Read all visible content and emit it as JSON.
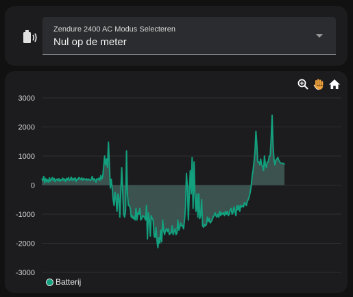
{
  "select": {
    "icon": "battery-charging-icon",
    "label": "Zendure 2400 AC Modus Selecteren",
    "value": "Nul op de meter"
  },
  "toolbar": {
    "icons": [
      "zoom-in-icon",
      "pan-hand-icon",
      "home-reset-icon"
    ]
  },
  "colors": {
    "series": "#13a07e",
    "fill": "#3f5954",
    "card": "#1c1c1e",
    "background": "#111111"
  },
  "chart_data": {
    "type": "area",
    "title": "",
    "xlabel": "",
    "ylabel": "",
    "ylim": [
      -3000,
      3000
    ],
    "yticks": [
      "3000",
      "2000",
      "1000",
      "0",
      "-1000",
      "-2000",
      "-3000"
    ],
    "grid": true,
    "legend_position": "bottom-left",
    "series": [
      {
        "name": "Batterij",
        "color": "#13a07e",
        "values": [
          220,
          160,
          300,
          80,
          230,
          120,
          180,
          100,
          250,
          130,
          200,
          260,
          160,
          230,
          120,
          180,
          210,
          150,
          220,
          130,
          190,
          160,
          240,
          170,
          210,
          120,
          230,
          180,
          260,
          150,
          200,
          270,
          160,
          230,
          180,
          250,
          120,
          210,
          190,
          260,
          230,
          190,
          250,
          170,
          230,
          200,
          180,
          220,
          170,
          210,
          180,
          160,
          200,
          300,
          160,
          220,
          180,
          100,
          220,
          190,
          240,
          160,
          330,
          210,
          280,
          620,
          1000,
          700,
          900,
          610,
          1480,
          680,
          -100,
          200,
          -100,
          -500,
          -700,
          -250,
          -500,
          -900,
          -300,
          -450,
          -1100,
          -250,
          600,
          -200,
          -1000,
          -1100,
          -900,
          1180,
          -300,
          -700,
          -700,
          -800,
          -1100,
          -1050,
          -1150,
          -1100,
          -1200,
          -800,
          -1200,
          -950,
          -1000,
          -800,
          -1200,
          -1150,
          -1050,
          -1080,
          -1100,
          -1200,
          -700,
          -1850,
          -950,
          -1200,
          -1750,
          -1050,
          -1150,
          -1200,
          -1750,
          -1800,
          -1450,
          -1900,
          -2150,
          -1800,
          -2000,
          -1550,
          -1950,
          -1200,
          -1550,
          -1700,
          -1550,
          -1500,
          -1600,
          -1500,
          -1700,
          -1650,
          -1650,
          -1400,
          -1700,
          -1600,
          -1500,
          -1700,
          -1650,
          -1200,
          -1550,
          -1450,
          -1300,
          -1400,
          -1400,
          -1500,
          -1200,
          -750,
          400,
          -100,
          -1200,
          -300,
          500,
          -300,
          950,
          -800,
          800,
          -400,
          -900,
          -300,
          -1100,
          -300,
          -1150,
          -1050,
          -500,
          -1400,
          -1450,
          -1350,
          -1400,
          -1350,
          -1100,
          -1250,
          -1150,
          -1300,
          -1250,
          -1200,
          -1100,
          -1050,
          -950,
          -1050,
          -1100,
          -1000,
          -1100,
          -900,
          -1050,
          -950,
          -1000,
          -950,
          -1050,
          -900,
          -1000,
          -900,
          -1050,
          -1000,
          -850,
          -800,
          -1000,
          -950,
          -750,
          -900,
          -1050,
          -700,
          -850,
          -700,
          -900,
          -700,
          -750,
          -700,
          -750,
          -600,
          -650,
          -700,
          -550,
          -500,
          -400,
          -250,
          -50,
          300,
          500,
          800,
          1150,
          1850,
          1400,
          800,
          800,
          700,
          900,
          700,
          650,
          500,
          1000,
          700,
          600,
          800,
          800,
          1000,
          1000,
          1600,
          2400,
          1400,
          900,
          700,
          850,
          900,
          950,
          850,
          800,
          750,
          750,
          750,
          750,
          700
        ]
      }
    ]
  }
}
